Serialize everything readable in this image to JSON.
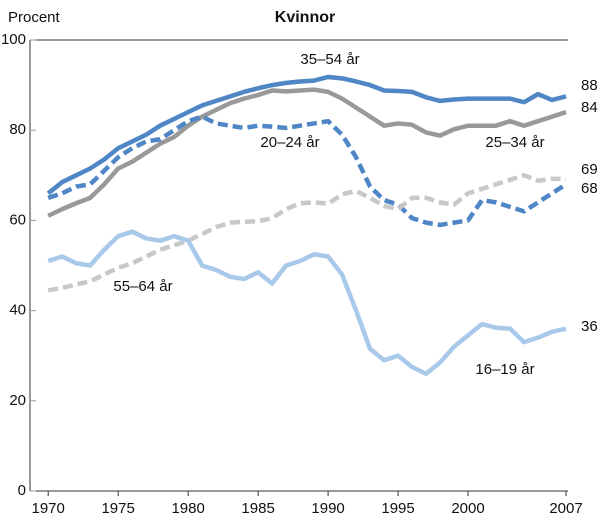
{
  "chart_data": {
    "type": "line",
    "title": "Kvinnor",
    "y_label": "Procent",
    "x": [
      1970,
      1971,
      1972,
      1973,
      1974,
      1975,
      1976,
      1977,
      1978,
      1979,
      1980,
      1981,
      1982,
      1983,
      1984,
      1985,
      1986,
      1987,
      1988,
      1989,
      1990,
      1991,
      1992,
      1993,
      1994,
      1995,
      1996,
      1997,
      1998,
      1999,
      2000,
      2001,
      2002,
      2003,
      2004,
      2005,
      2006,
      2007
    ],
    "xlim": [
      1968.7,
      2007
    ],
    "xticks": [
      1970,
      1975,
      1980,
      1985,
      1990,
      1995,
      2000,
      2007
    ],
    "ylim": [
      0,
      100
    ],
    "yticks": [
      0,
      20,
      40,
      60,
      80,
      100
    ],
    "grid": false,
    "series": [
      {
        "name": "35–54 år",
        "color": "#4f86c6",
        "dashed": false,
        "values": [
          66,
          68.5,
          70,
          71.5,
          73.5,
          76,
          77.5,
          79,
          81,
          82.5,
          84,
          85.5,
          86.5,
          87.5,
          88.5,
          89.3,
          90,
          90.5,
          90.8,
          91,
          91.8,
          91.5,
          90.8,
          90,
          88.8,
          88.7,
          88.5,
          87.3,
          86.5,
          86.8,
          87,
          87,
          87,
          87,
          86.2,
          88,
          86.7,
          87.5
        ],
        "value_labels": [
          null,
          null,
          null,
          null,
          null,
          null,
          null,
          null,
          null,
          null,
          null,
          null,
          null,
          null,
          null,
          null,
          null,
          null,
          null,
          null,
          null,
          null,
          null,
          null,
          null,
          null,
          null,
          null,
          null,
          null,
          null,
          null,
          null,
          null,
          null,
          null,
          null,
          "88"
        ]
      },
      {
        "name": "25–34 år",
        "color": "#999999",
        "dashed": false,
        "values": [
          61,
          62.5,
          63.8,
          65,
          68,
          71.5,
          73,
          75,
          77,
          78.5,
          81,
          83,
          84.5,
          86,
          87,
          87.8,
          88.8,
          88.6,
          88.8,
          89,
          88.5,
          87,
          85,
          83,
          81,
          81.5,
          81.2,
          79.5,
          78.8,
          80.2,
          81,
          81,
          81,
          82,
          81,
          82,
          83,
          84
        ],
        "value_labels": [
          null,
          null,
          null,
          null,
          null,
          null,
          null,
          null,
          null,
          null,
          null,
          null,
          null,
          null,
          null,
          null,
          null,
          null,
          null,
          null,
          null,
          null,
          null,
          null,
          null,
          null,
          null,
          null,
          null,
          null,
          null,
          null,
          null,
          null,
          null,
          null,
          null,
          "84"
        ]
      },
      {
        "name": "20–24 år",
        "color": "#4f86c6",
        "dashed": true,
        "values": [
          65,
          66,
          67.5,
          68,
          71,
          74,
          76,
          77.5,
          78,
          80,
          82,
          83,
          81.5,
          81,
          80.5,
          81,
          80.8,
          80.5,
          81,
          81.5,
          82,
          79,
          74,
          67.5,
          64.5,
          63.5,
          60.5,
          59.5,
          59,
          59.5,
          60,
          64.5,
          64,
          63,
          62,
          64,
          66,
          68
        ],
        "value_labels": [
          null,
          null,
          null,
          null,
          null,
          null,
          null,
          null,
          null,
          null,
          null,
          null,
          null,
          null,
          null,
          null,
          null,
          null,
          null,
          null,
          null,
          null,
          null,
          null,
          null,
          null,
          null,
          null,
          null,
          null,
          null,
          null,
          null,
          null,
          null,
          null,
          null,
          "68"
        ]
      },
      {
        "name": "55–64 år",
        "color": "#c8c8c8",
        "dashed": true,
        "values": [
          44.5,
          45,
          45.8,
          46.5,
          48,
          49.5,
          50.5,
          52,
          53.5,
          54.5,
          55.5,
          57,
          58.5,
          59.5,
          59.7,
          59.8,
          60.5,
          62.5,
          63.8,
          64,
          63.7,
          65.8,
          66.5,
          65,
          63.2,
          62.5,
          65,
          65,
          64,
          63.5,
          66,
          67,
          68,
          69,
          70,
          68.8,
          69.2,
          69.2
        ],
        "value_labels": [
          null,
          null,
          null,
          null,
          null,
          null,
          null,
          null,
          null,
          null,
          null,
          null,
          null,
          null,
          null,
          null,
          null,
          null,
          null,
          null,
          null,
          null,
          null,
          null,
          null,
          null,
          null,
          null,
          null,
          null,
          null,
          null,
          null,
          null,
          null,
          null,
          null,
          "69"
        ]
      },
      {
        "name": "16–19 år",
        "color": "#a9c9ea",
        "dashed": false,
        "values": [
          51,
          52,
          50.5,
          50,
          53.5,
          56.5,
          57.5,
          56,
          55.5,
          56.5,
          55.5,
          50,
          49,
          47.5,
          47,
          48.5,
          46,
          50,
          51,
          52.5,
          52,
          48,
          40,
          31.5,
          29,
          30,
          27.5,
          26,
          28.5,
          32,
          34.5,
          37,
          36.2,
          36,
          33,
          34,
          35.3,
          36
        ],
        "value_labels": [
          null,
          null,
          null,
          null,
          null,
          null,
          null,
          null,
          null,
          null,
          null,
          null,
          null,
          null,
          null,
          null,
          null,
          null,
          null,
          null,
          null,
          null,
          null,
          null,
          null,
          null,
          null,
          null,
          null,
          null,
          null,
          null,
          null,
          null,
          null,
          null,
          null,
          "36"
        ]
      }
    ]
  }
}
